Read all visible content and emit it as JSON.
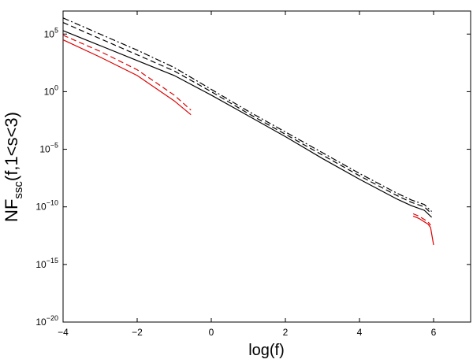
{
  "chart_data": {
    "type": "line",
    "title": "",
    "xlabel": "log(f)",
    "ylabel": {
      "main": "NF",
      "sub": "ssc",
      "rest": "(f,1<s<3)"
    },
    "xlim": [
      -4,
      7
    ],
    "ylim_log10": [
      -20,
      7
    ],
    "yscale": "log",
    "grid": false,
    "x_ticks": [
      -4,
      -2,
      0,
      2,
      4,
      6
    ],
    "x_tick_labels": [
      "−4",
      "−2",
      "0",
      "2",
      "4",
      "6"
    ],
    "y_ticks": [
      {
        "base": "10",
        "exp": "5"
      },
      {
        "base": "10",
        "exp": "0"
      },
      {
        "base": "10",
        "exp": "−5"
      },
      {
        "base": "10",
        "exp": "−10"
      },
      {
        "base": "10",
        "exp": "−15"
      },
      {
        "base": "10",
        "exp": "−20"
      }
    ],
    "series": [
      {
        "color": "#000000",
        "dash": "solid",
        "x": [
          -4.0,
          -3.0,
          -2.0,
          -1.0,
          0.0,
          1.0,
          2.0,
          3.0,
          4.0,
          5.0,
          5.4,
          5.75,
          5.95
        ],
        "log10_y": [
          5.3,
          4.0,
          2.7,
          1.4,
          -0.3,
          -2.1,
          -3.9,
          -5.8,
          -7.6,
          -9.3,
          -9.9,
          -10.3,
          -10.9
        ]
      },
      {
        "color": "#000000",
        "dash": "dashed",
        "x": [
          -4.0,
          -3.0,
          -2.0,
          -1.0,
          0.0,
          1.0,
          2.0,
          3.0,
          4.0,
          5.0,
          5.4,
          5.75,
          5.95
        ],
        "log10_y": [
          6.0,
          4.6,
          3.2,
          1.8,
          0.0,
          -1.9,
          -3.7,
          -5.5,
          -7.3,
          -9.0,
          -9.6,
          -10.0,
          -10.6
        ]
      },
      {
        "color": "#000000",
        "dash": "dashdot",
        "x": [
          -4.0,
          -3.0,
          -2.0,
          -1.0,
          0.0,
          1.0,
          2.0,
          3.0,
          4.0,
          5.0,
          5.4,
          5.75,
          5.95
        ],
        "log10_y": [
          6.4,
          5.0,
          3.6,
          2.1,
          0.2,
          -1.7,
          -3.5,
          -5.3,
          -7.1,
          -8.8,
          -9.4,
          -9.8,
          -10.4
        ]
      },
      {
        "color": "#dd0000",
        "dash": "solid",
        "x": [
          -4.0,
          -3.0,
          -2.0,
          -1.0,
          -0.55
        ],
        "log10_y": [
          4.5,
          3.0,
          1.4,
          -0.8,
          -2.0
        ]
      },
      {
        "color": "#dd0000",
        "dash": "dashed",
        "x": [
          -4.0,
          -3.0,
          -2.0,
          -1.0,
          -0.55
        ],
        "log10_y": [
          4.9,
          3.5,
          1.9,
          -0.3,
          -1.6
        ]
      },
      {
        "color": "#dd0000",
        "dash": "solid",
        "x": [
          5.45,
          5.6,
          5.75,
          5.85,
          5.92,
          6.0
        ],
        "log10_y": [
          -10.8,
          -11.0,
          -11.3,
          -11.5,
          -11.8,
          -13.3
        ]
      },
      {
        "color": "#dd0000",
        "dash": "dashed",
        "x": [
          5.45,
          5.6,
          5.75,
          5.85,
          5.92
        ],
        "log10_y": [
          -10.6,
          -10.8,
          -11.1,
          -11.3,
          -11.6
        ]
      }
    ]
  }
}
